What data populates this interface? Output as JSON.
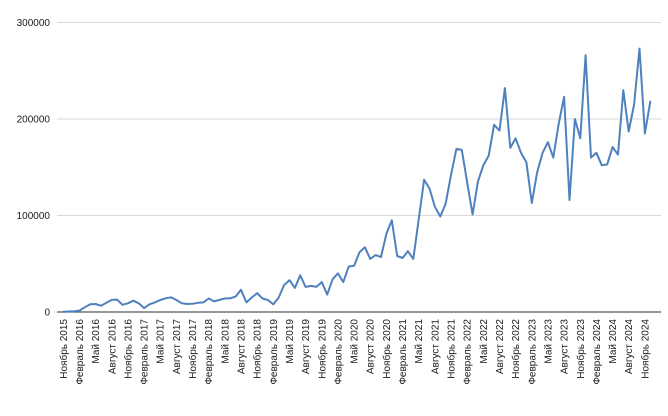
{
  "chart_data": {
    "type": "line",
    "title": "",
    "xlabel": "",
    "ylabel": "",
    "legend": "none",
    "grid": "horizontal",
    "ylim": [
      0,
      300000
    ],
    "y_ticks": [
      0,
      100000,
      200000,
      300000
    ],
    "y_tick_labels": [
      "0",
      "100000",
      "200000",
      "300000"
    ],
    "x_tick_every": 3,
    "x_tick_labels": [
      "Ноябрь 2015",
      "Февраль 2016",
      "Май 2016",
      "Август 2016",
      "Ноябрь 2016",
      "Февраль 2017",
      "Май 2017",
      "Август 2017",
      "Ноябрь 2017",
      "Февраль 2018",
      "Май 2018",
      "Август 2018",
      "Ноябрь 2018",
      "Февраль 2019",
      "Май 2019",
      "Август 2019",
      "Ноябрь 2019",
      "Февраль 2020",
      "Май 2020",
      "Август 2020",
      "Ноябрь 2020",
      "Февраль 2021",
      "Май 2021",
      "Август 2021",
      "Ноябрь 2021",
      "Февраль 2022",
      "Май 2022",
      "Август 2022",
      "Ноябрь 2022",
      "Февраль 2023",
      "Май 2023",
      "Август 2023",
      "Ноябрь 2023",
      "Февраль 2024",
      "Май 2024",
      "Август 2024",
      "Ноябрь 2024"
    ],
    "x": [
      "Ноябрь 2015",
      "Декабрь 2015",
      "Январь 2016",
      "Февраль 2016",
      "Март 2016",
      "Апрель 2016",
      "Май 2016",
      "Июнь 2016",
      "Июль 2016",
      "Август 2016",
      "Сентябрь 2016",
      "Октябрь 2016",
      "Ноябрь 2016",
      "Декабрь 2016",
      "Январь 2017",
      "Февраль 2017",
      "Март 2017",
      "Апрель 2017",
      "Май 2017",
      "Июнь 2017",
      "Июль 2017",
      "Август 2017",
      "Сентябрь 2017",
      "Октябрь 2017",
      "Ноябрь 2017",
      "Декабрь 2017",
      "Январь 2018",
      "Февраль 2018",
      "Март 2018",
      "Апрель 2018",
      "Май 2018",
      "Июнь 2018",
      "Июль 2018",
      "Август 2018",
      "Сентябрь 2018",
      "Октябрь 2018",
      "Ноябрь 2018",
      "Декабрь 2018",
      "Январь 2019",
      "Февраль 2019",
      "Март 2019",
      "Апрель 2019",
      "Май 2019",
      "Июнь 2019",
      "Июль 2019",
      "Август 2019",
      "Сентябрь 2019",
      "Октябрь 2019",
      "Ноябрь 2019",
      "Декабрь 2019",
      "Январь 2020",
      "Февраль 2020",
      "Март 2020",
      "Апрель 2020",
      "Май 2020",
      "Июнь 2020",
      "Июль 2020",
      "Август 2020",
      "Сентябрь 2020",
      "Октябрь 2020",
      "Ноябрь 2020",
      "Декабрь 2020",
      "Январь 2021",
      "Февраль 2021",
      "Март 2021",
      "Апрель 2021",
      "Май 2021",
      "Июнь 2021",
      "Июль 2021",
      "Август 2021",
      "Сентябрь 2021",
      "Октябрь 2021",
      "Ноябрь 2021",
      "Декабрь 2021",
      "Январь 2022",
      "Февраль 2022",
      "Март 2022",
      "Апрель 2022",
      "Май 2022",
      "Июнь 2022",
      "Июль 2022",
      "Август 2022",
      "Сентябрь 2022",
      "Октябрь 2022",
      "Ноябрь 2022",
      "Декабрь 2022",
      "Январь 2023",
      "Февраль 2023",
      "Март 2023",
      "Апрель 2023",
      "Май 2023",
      "Июнь 2023",
      "Июль 2023",
      "Август 2023",
      "Сентябрь 2023",
      "Октябрь 2023",
      "Ноябрь 2023",
      "Декабрь 2023",
      "Январь 2024",
      "Февраль 2024",
      "Март 2024",
      "Апрель 2024",
      "Май 2024",
      "Июнь 2024",
      "Июль 2024",
      "Август 2024",
      "Сентябрь 2024",
      "Октябрь 2024",
      "Ноябрь 2024",
      "Декабрь 2024"
    ],
    "values": [
      300,
      500,
      800,
      1500,
      5000,
      8000,
      8300,
      6500,
      9500,
      12500,
      12800,
      7500,
      9000,
      11700,
      9000,
      4000,
      8000,
      10000,
      12400,
      14200,
      15200,
      12400,
      9000,
      8300,
      8500,
      9500,
      10000,
      14000,
      11000,
      12500,
      14000,
      14200,
      16000,
      23000,
      10000,
      15000,
      19500,
      14000,
      12400,
      8000,
      15000,
      28000,
      33000,
      25000,
      38000,
      26000,
      27000,
      26000,
      31000,
      18000,
      34000,
      40000,
      31000,
      47000,
      48000,
      62000,
      67000,
      55000,
      59000,
      57000,
      81000,
      95000,
      58000,
      56000,
      63000,
      55000,
      96000,
      137000,
      128000,
      109000,
      99000,
      112000,
      142000,
      169000,
      168000,
      134000,
      101000,
      135000,
      152000,
      162000,
      194000,
      188000,
      232000,
      170000,
      180000,
      165000,
      155000,
      113000,
      145000,
      165000,
      176000,
      160000,
      195000,
      223000,
      116000,
      200000,
      180000,
      266000,
      160000,
      165000,
      152000,
      153000,
      171000,
      163000,
      230000,
      187000,
      215000,
      273000,
      185000,
      218000
    ],
    "colors": {
      "line": "#4f81bd",
      "gridline": "#d9d9d9",
      "axis": "#595959",
      "label_text": "#1a1a1a",
      "background": "#ffffff"
    }
  }
}
